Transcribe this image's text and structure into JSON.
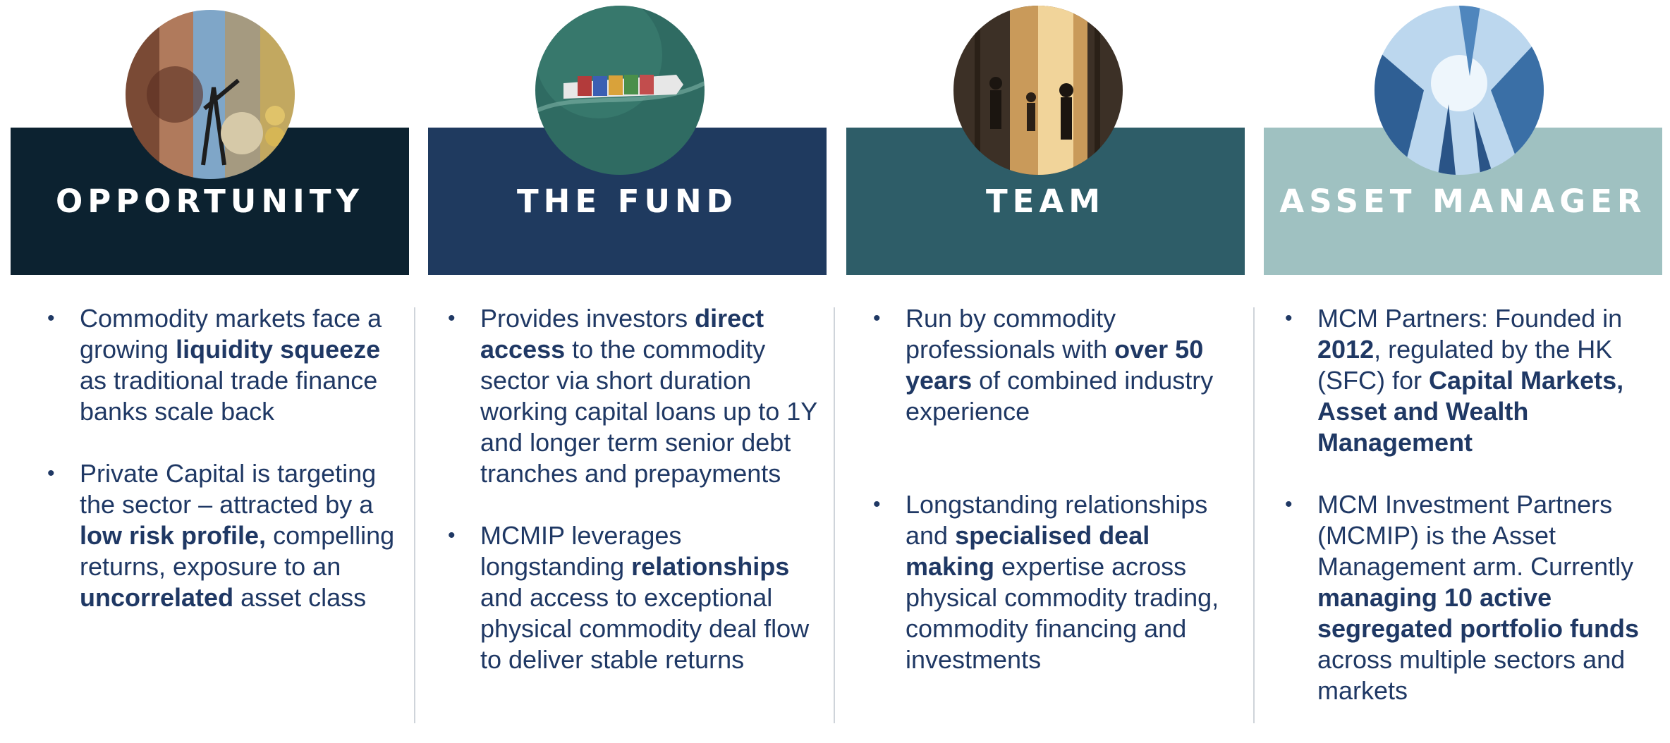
{
  "colors": {
    "opportunity": "#0c2230",
    "fund": "#1f3a5f",
    "team": "#2e5d68",
    "asset_manager": "#9fc1c1",
    "text": "#1f3864"
  },
  "columns": [
    {
      "title": "OPPORTUNITY",
      "image_icon": "commodities-collage-image",
      "bullets": [
        {
          "segments": [
            {
              "text": "Commodity markets face a growing ",
              "bold": false
            },
            {
              "text": "liquidity squeeze",
              "bold": true
            },
            {
              "text": " as traditional trade finance banks scale back",
              "bold": false
            }
          ]
        },
        {
          "segments": [
            {
              "text": "Private Capital is targeting the sector – attracted by a ",
              "bold": false
            },
            {
              "text": "low risk profile,",
              "bold": true
            },
            {
              "text": " compelling returns, exposure to an ",
              "bold": false
            },
            {
              "text": "uncorrelated",
              "bold": true
            },
            {
              "text": " asset class",
              "bold": false
            }
          ]
        }
      ]
    },
    {
      "title": "THE FUND",
      "image_icon": "cargo-ship-image",
      "bullets": [
        {
          "segments": [
            {
              "text": "Provides investors ",
              "bold": false
            },
            {
              "text": "direct access",
              "bold": true
            },
            {
              "text": " to the commodity sector via short duration working capital loans up to 1Y and longer term senior debt tranches and prepayments",
              "bold": false
            }
          ]
        },
        {
          "segments": [
            {
              "text": "MCMIP leverages longstanding ",
              "bold": false
            },
            {
              "text": "relationships",
              "bold": true
            },
            {
              "text": " and access to exceptional physical commodity deal flow to deliver stable returns",
              "bold": false
            }
          ]
        }
      ]
    },
    {
      "title": "TEAM",
      "image_icon": "business-people-image",
      "bullets": [
        {
          "segments": [
            {
              "text": "Run by commodity professionals with ",
              "bold": false
            },
            {
              "text": "over 50 years",
              "bold": true
            },
            {
              "text": " of combined industry experience",
              "bold": false
            }
          ]
        },
        {
          "segments": [
            {
              "text": "Longstanding relationships and ",
              "bold": false
            },
            {
              "text": "specialised deal making",
              "bold": true
            },
            {
              "text": " expertise across physical commodity trading, commodity financing and investments",
              "bold": false
            }
          ]
        }
      ]
    },
    {
      "title": "ASSET MANAGER",
      "image_icon": "skyscrapers-image",
      "bullets": [
        {
          "segments": [
            {
              "text": "MCM Partners: Founded in ",
              "bold": false
            },
            {
              "text": "2012",
              "bold": true
            },
            {
              "text": ", regulated by the HK (SFC) for ",
              "bold": false
            },
            {
              "text": "Capital Markets, Asset and Wealth Management",
              "bold": true
            }
          ]
        },
        {
          "segments": [
            {
              "text": "MCM Investment Partners (MCMIP) is the Asset Management arm. Currently ",
              "bold": false
            },
            {
              "text": "managing 10 active segregated portfolio funds",
              "bold": true
            },
            {
              "text": " across multiple sectors and markets",
              "bold": false
            }
          ]
        }
      ]
    }
  ]
}
